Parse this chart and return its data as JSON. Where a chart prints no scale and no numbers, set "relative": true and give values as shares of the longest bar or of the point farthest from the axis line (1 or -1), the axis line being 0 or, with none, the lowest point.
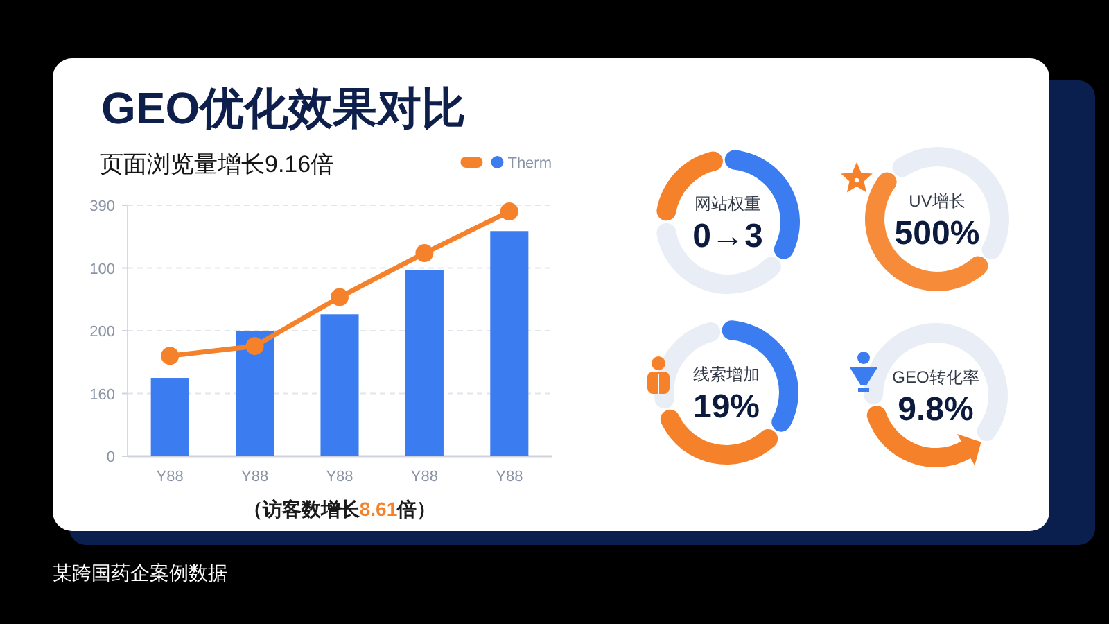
{
  "chart_data": [
    {
      "type": "bar",
      "title": "GEO优化效果对比",
      "subtitle": "页面浏览量增长9.16倍",
      "categories": [
        "Y88",
        "Y88",
        "Y88",
        "Y88",
        "Y88"
      ],
      "relative": true,
      "grid": "y",
      "legend": "top right",
      "marker": "circle",
      "series": [
        {
          "type": "line",
          "color": "#f5822a",
          "values": [
            0.41,
            0.45,
            0.65,
            0.83,
            1
          ]
        },
        {
          "name": "Therm",
          "color": "#3b7cf0",
          "values": [
            0.32,
            0.51,
            0.58,
            0.76,
            0.92
          ]
        }
      ],
      "annotations": [
        "（访客数增长8.61倍）",
        "某跨国药企案例数据",
        "0",
        "160",
        "200",
        "100",
        "390"
      ]
    },
    {
      "type": "donut",
      "title": "网站权重",
      "annotations": [
        "0→3"
      ],
      "categories": [
        null,
        null,
        null
      ],
      "values": [
        24,
        36,
        40
      ],
      "colors": [
        "#f5822a",
        "#3b7cf0",
        "#e9edf5"
      ]
    },
    {
      "type": "donut",
      "title": "UV增长",
      "annotations": [
        "500%"
      ],
      "categories": [
        null,
        null
      ],
      "values": [
        52,
        48
      ],
      "colors": [
        "#f68b3a",
        "#e9edf5"
      ]
    },
    {
      "type": "donut",
      "title": "线索增加",
      "annotations": [
        "19%"
      ],
      "categories": [
        null,
        null,
        null
      ],
      "values": [
        37,
        35,
        28
      ],
      "colors": [
        "#3b7cf0",
        "#f5822a",
        "#e9edf5"
      ]
    },
    {
      "type": "donut",
      "title": "GEO转化率",
      "annotations": [
        "9.8%"
      ],
      "categories": [
        null,
        null
      ],
      "values": [
        35,
        65
      ],
      "colors": [
        "#f5822a",
        "#e9edf5"
      ]
    }
  ]
}
